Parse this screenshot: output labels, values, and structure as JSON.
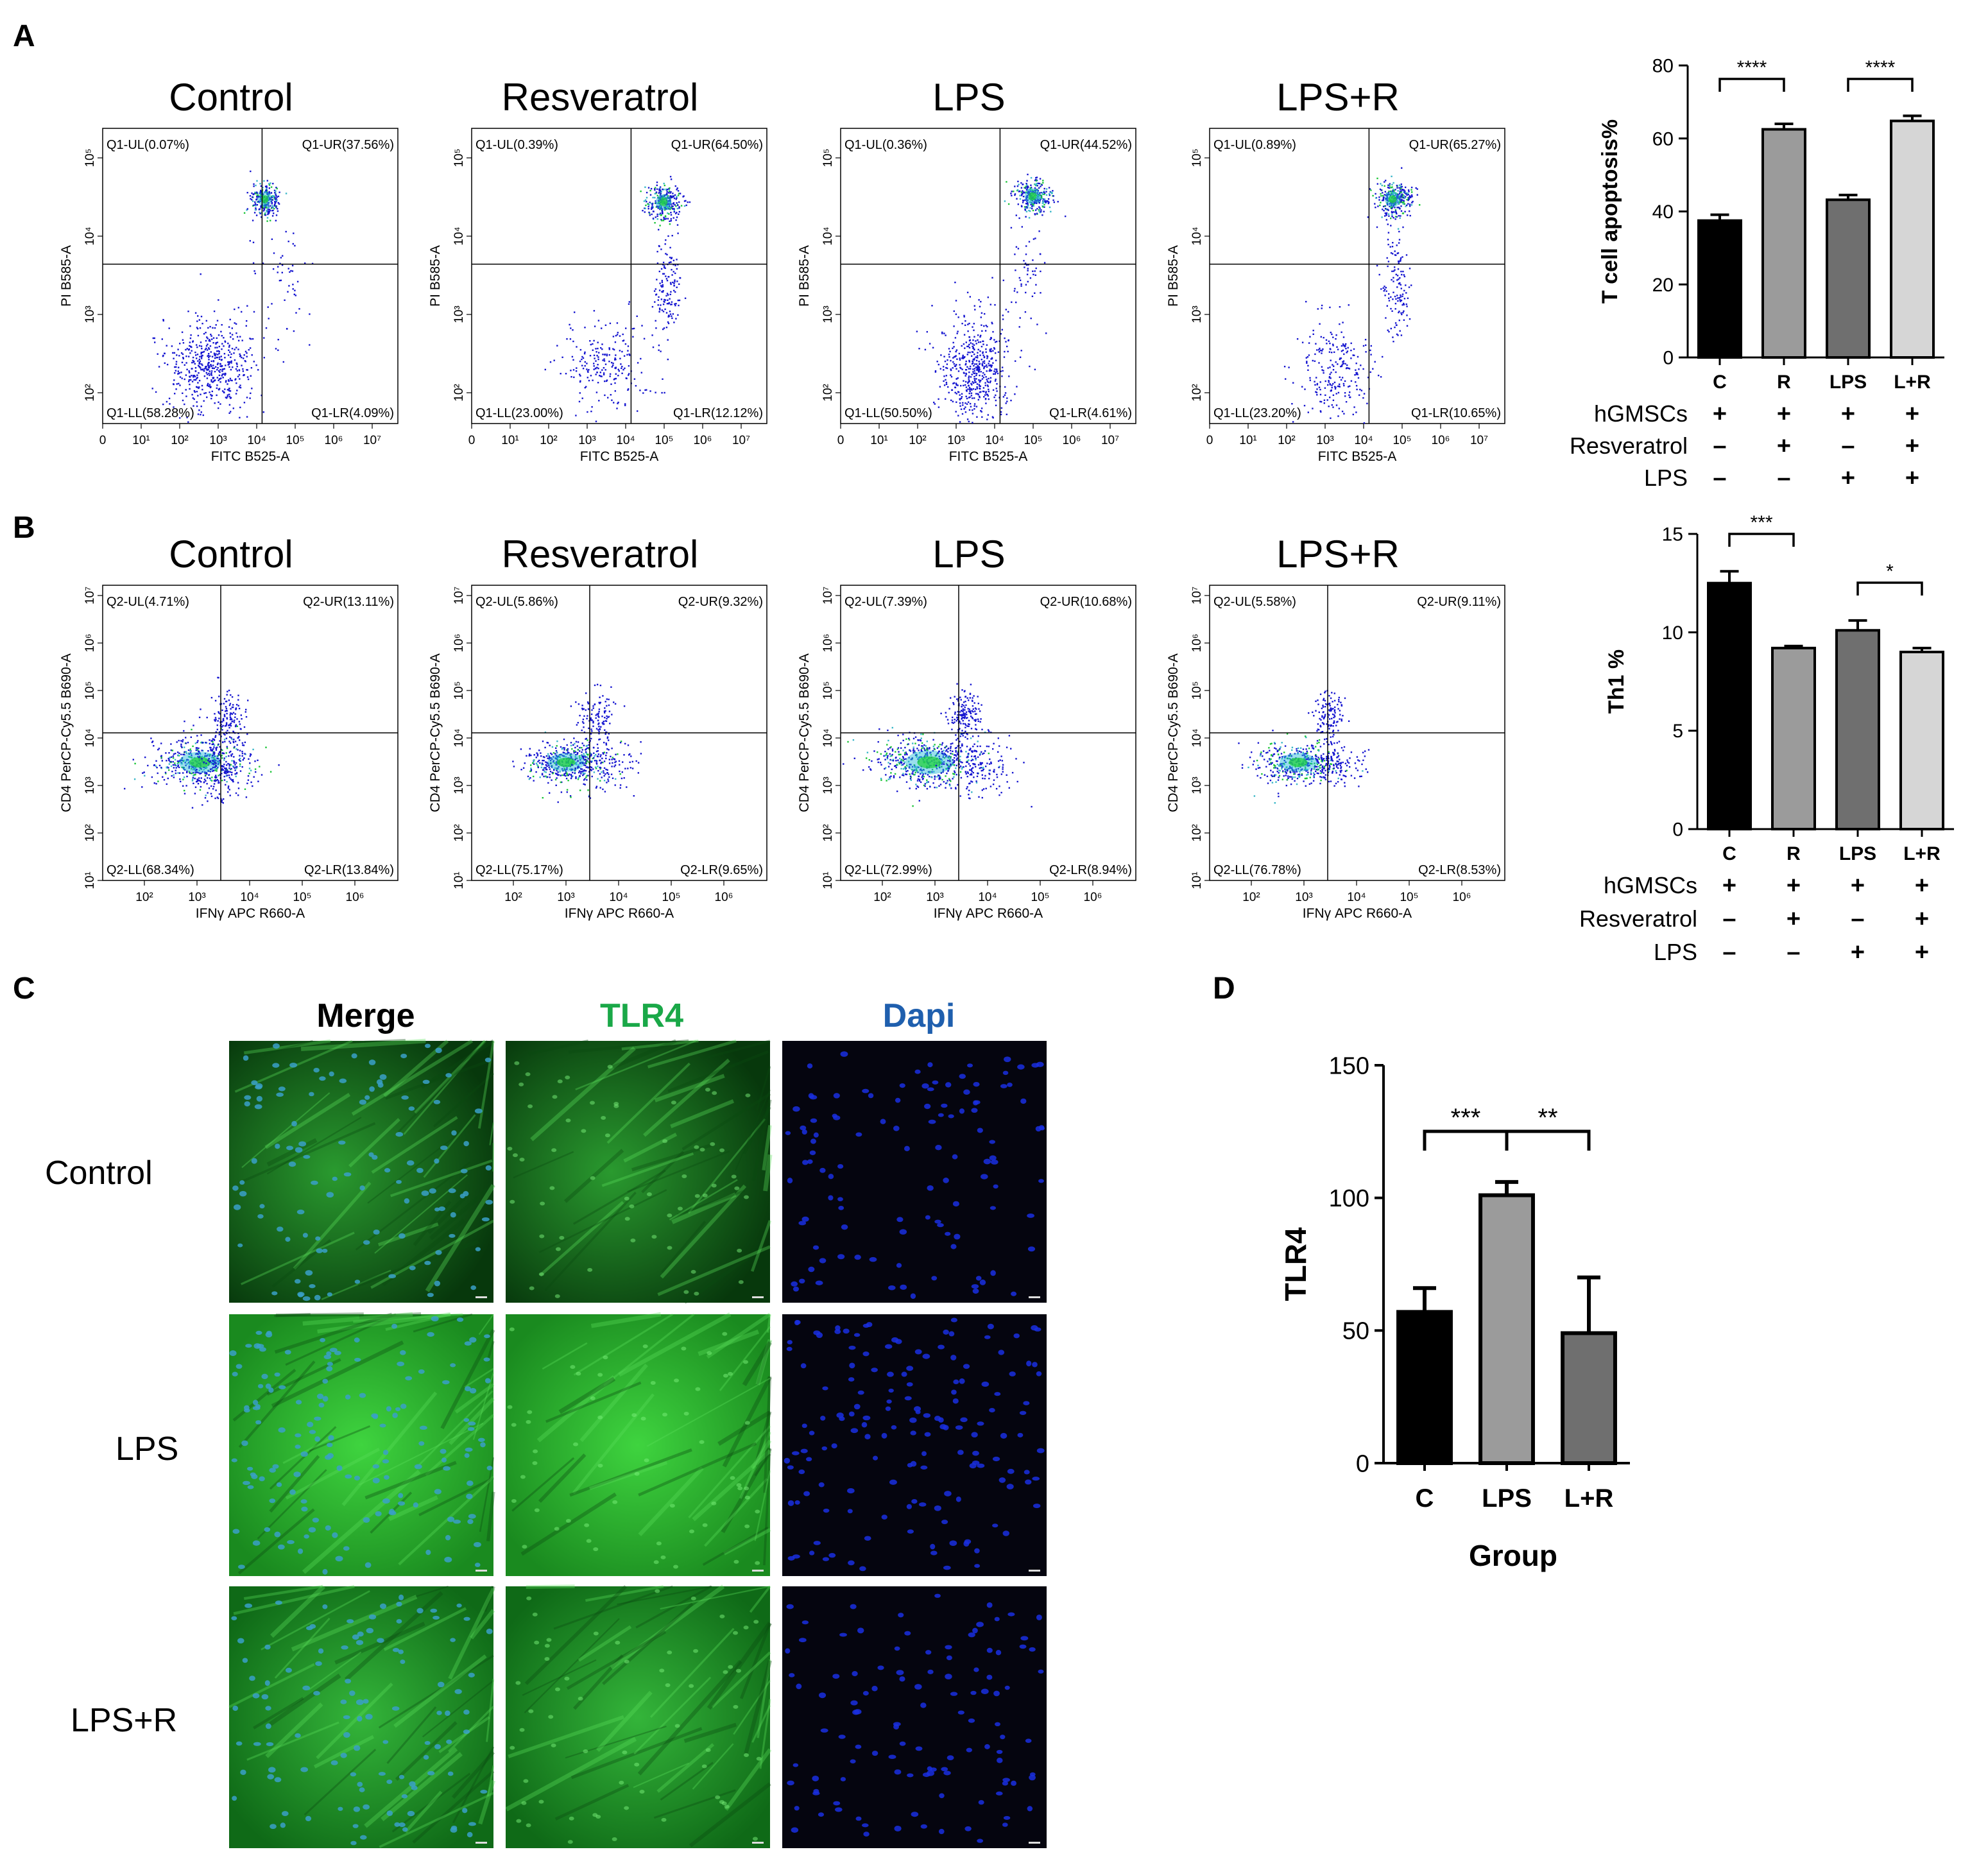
{
  "panels": {
    "A": "A",
    "B": "B",
    "C": "C",
    "D": "D"
  },
  "flow_A": {
    "titles": [
      "Control",
      "Resveratrol",
      "LPS",
      "LPS+R"
    ],
    "xlabel": "FITC B525-A",
    "ylabel": "PI B585-A",
    "xticks": [
      "0",
      "10¹",
      "10²",
      "10³",
      "10⁴",
      "10⁵",
      "10⁶",
      "10⁷"
    ],
    "yticks": [
      "10²",
      "10³",
      "10⁴",
      "10⁵"
    ],
    "quadrants": [
      {
        "UL": "Q1-UL(0.07%)",
        "UR": "Q1-UR(37.56%)",
        "LL": "Q1-LL(58.28%)",
        "LR": "Q1-LR(4.09%)"
      },
      {
        "UL": "Q1-UL(0.39%)",
        "UR": "Q1-UR(64.50%)",
        "LL": "Q1-LL(23.00%)",
        "LR": "Q1-LR(12.12%)"
      },
      {
        "UL": "Q1-UL(0.36%)",
        "UR": "Q1-UR(44.52%)",
        "LL": "Q1-LL(50.50%)",
        "LR": "Q1-LR(4.61%)"
      },
      {
        "UL": "Q1-UL(0.89%)",
        "UR": "Q1-UR(65.27%)",
        "LL": "Q1-LL(23.20%)",
        "LR": "Q1-LR(10.65%)"
      }
    ]
  },
  "flow_B": {
    "titles": [
      "Control",
      "Resveratrol",
      "LPS",
      "LPS+R"
    ],
    "xlabel": "IFNγ APC R660-A",
    "ylabel": "CD4 PerCP-Cy5.5 B690-A",
    "xticks": [
      "10²",
      "10³",
      "10⁴",
      "10⁵",
      "10⁶"
    ],
    "yticks": [
      "10¹",
      "10²",
      "10³",
      "10⁴",
      "10⁵",
      "10⁶",
      "10⁷"
    ],
    "quadrants": [
      {
        "UL": "Q2-UL(4.71%)",
        "UR": "Q2-UR(13.11%)",
        "LL": "Q2-LL(68.34%)",
        "LR": "Q2-LR(13.84%)"
      },
      {
        "UL": "Q2-UL(5.86%)",
        "UR": "Q2-UR(9.32%)",
        "LL": "Q2-LL(75.17%)",
        "LR": "Q2-LR(9.65%)"
      },
      {
        "UL": "Q2-UL(7.39%)",
        "UR": "Q2-UR(10.68%)",
        "LL": "Q2-LL(72.99%)",
        "LR": "Q2-LR(8.94%)"
      },
      {
        "UL": "Q2-UL(5.58%)",
        "UR": "Q2-UR(9.11%)",
        "LL": "Q2-LL(76.78%)",
        "LR": "Q2-LR(8.53%)"
      }
    ]
  },
  "chart_data": [
    {
      "type": "bar",
      "categories": [
        "C",
        "R",
        "LPS",
        "L+R"
      ],
      "values": [
        37.5,
        62.5,
        43.2,
        64.8
      ],
      "errors": [
        1.6,
        1.5,
        1.3,
        1.4
      ],
      "colors": [
        "#000000",
        "#9b9b9b",
        "#6f6f6f",
        "#d6d6d6"
      ],
      "xlabel": "",
      "ylabel": "T cell apoptosis%",
      "ylim": [
        0,
        80
      ],
      "yticks": [
        "0",
        "20",
        "40",
        "60",
        "80"
      ],
      "significance": [
        {
          "from": 0,
          "to": 1,
          "label": "****"
        },
        {
          "from": 2,
          "to": 3,
          "label": "****"
        }
      ],
      "conditions": [
        {
          "name": "hGMSCs",
          "signs": [
            "+",
            "+",
            "+",
            "+"
          ]
        },
        {
          "name": "Resveratrol",
          "signs": [
            "–",
            "+",
            "–",
            "+"
          ]
        },
        {
          "name": "LPS",
          "signs": [
            "–",
            "–",
            "+",
            "+"
          ]
        }
      ]
    },
    {
      "type": "bar",
      "categories": [
        "C",
        "R",
        "LPS",
        "L+R"
      ],
      "values": [
        12.5,
        9.2,
        10.1,
        9.0
      ],
      "errors": [
        0.6,
        0.1,
        0.5,
        0.2
      ],
      "colors": [
        "#000000",
        "#9b9b9b",
        "#6f6f6f",
        "#d6d6d6"
      ],
      "xlabel": "",
      "ylabel": "Th1 %",
      "ylim": [
        0,
        15
      ],
      "yticks": [
        "0",
        "5",
        "10",
        "15"
      ],
      "significance": [
        {
          "from": 0,
          "to": 1,
          "label": "***"
        },
        {
          "from": 2,
          "to": 3,
          "label": "*"
        }
      ],
      "conditions": [
        {
          "name": "hGMSCs",
          "signs": [
            "+",
            "+",
            "+",
            "+"
          ]
        },
        {
          "name": "Resveratrol",
          "signs": [
            "–",
            "+",
            "–",
            "+"
          ]
        },
        {
          "name": "LPS",
          "signs": [
            "–",
            "–",
            "+",
            "+"
          ]
        }
      ]
    },
    {
      "type": "bar",
      "categories": [
        "C",
        "LPS",
        "L+R"
      ],
      "values": [
        57,
        101,
        49
      ],
      "errors": [
        9,
        5,
        21
      ],
      "colors": [
        "#000000",
        "#9b9b9b",
        "#6f6f6f"
      ],
      "xlabel": "Group",
      "ylabel": "TLR4",
      "ylim": [
        0,
        150
      ],
      "yticks": [
        "0",
        "50",
        "100",
        "150"
      ],
      "significance": [
        {
          "from": 0,
          "to": 1,
          "label": "***"
        },
        {
          "from": 1,
          "to": 2,
          "label": "**"
        }
      ]
    }
  ],
  "micro_C": {
    "columns": [
      "Merge",
      "TLR4",
      "Dapi"
    ],
    "column_colors": [
      "#000000",
      "#1aa848",
      "#1f5fae"
    ],
    "rows": [
      "Control",
      "LPS",
      "LPS+R"
    ]
  }
}
